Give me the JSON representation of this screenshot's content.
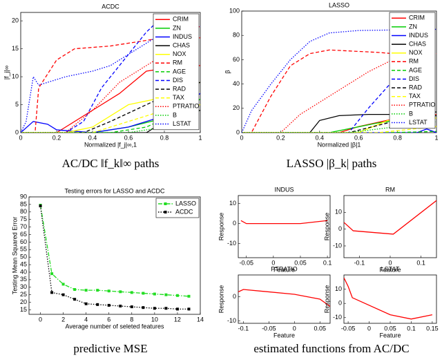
{
  "chart_data": [
    {
      "type": "line",
      "title": "ACDC",
      "xlabel": "Normalized |f_j|∞,1",
      "ylabel": "|f_j|∞",
      "xlim": [
        0,
        1
      ],
      "xticks": [
        0,
        0.2,
        0.4,
        0.6,
        0.8,
        1
      ],
      "ylim": [
        0,
        21.5
      ],
      "yticks": [
        0,
        5,
        10,
        15,
        20
      ],
      "legend": "upper right",
      "legend_box": false,
      "series": [
        {
          "name": "CRIM",
          "color": "#ff0000",
          "style": "solid",
          "x": [
            0,
            0.2,
            0.4,
            0.55,
            0.7,
            0.8,
            1
          ],
          "values": [
            0,
            0,
            4,
            7,
            11,
            11.5,
            12
          ]
        },
        {
          "name": "ZN",
          "color": "#00cc00",
          "style": "solid",
          "x": [
            0,
            0.4,
            0.6,
            0.85,
            1
          ],
          "values": [
            0,
            0,
            1,
            3,
            6
          ]
        },
        {
          "name": "INDUS",
          "color": "#0000ff",
          "style": "solid",
          "x": [
            0,
            0.07,
            0.15,
            0.2,
            0.4,
            0.6,
            0.8,
            1
          ],
          "values": [
            0,
            2,
            1.5,
            0.5,
            0,
            1,
            3,
            7
          ]
        },
        {
          "name": "CHAS",
          "color": "#000000",
          "style": "solid",
          "x": [
            0,
            0.7,
            0.8,
            1
          ],
          "values": [
            0,
            0,
            2,
            4
          ]
        },
        {
          "name": "NOX",
          "color": "#ffff00",
          "style": "solid",
          "x": [
            0,
            0.25,
            0.4,
            0.6,
            0.75,
            1
          ],
          "values": [
            0,
            0,
            1,
            5,
            6,
            9
          ]
        },
        {
          "name": "RM",
          "color": "#ff0000",
          "style": "dashed",
          "x": [
            0,
            0.08,
            0.1,
            0.2,
            0.3,
            0.5,
            0.6,
            0.8,
            1
          ],
          "values": [
            0,
            0,
            8,
            13,
            15,
            15.5,
            16,
            17,
            19
          ]
        },
        {
          "name": "AGE",
          "color": "#00cc00",
          "style": "dashed",
          "x": [
            0,
            0.5,
            0.7,
            0.9,
            1
          ],
          "values": [
            0,
            0,
            1,
            4,
            6
          ]
        },
        {
          "name": "DIS",
          "color": "#0000ff",
          "style": "dashed",
          "x": [
            0,
            0.25,
            0.35,
            0.45,
            0.55,
            0.7,
            0.8
          ],
          "values": [
            0,
            0,
            2,
            8,
            12,
            18,
            21
          ]
        },
        {
          "name": "RAD",
          "color": "#000000",
          "style": "dashed",
          "x": [
            0,
            0.35,
            0.5,
            0.7,
            0.9,
            1
          ],
          "values": [
            0,
            0,
            2,
            5,
            8,
            9
          ]
        },
        {
          "name": "TAX",
          "color": "#ffff00",
          "style": "dashed",
          "x": [
            0,
            0.4,
            0.6,
            0.8,
            1
          ],
          "values": [
            0,
            0,
            2,
            4,
            5
          ]
        },
        {
          "name": "PTRATIO",
          "color": "#ff0000",
          "style": "dotted",
          "x": [
            0,
            0.25,
            0.4,
            0.55,
            0.7,
            0.85,
            1
          ],
          "values": [
            0,
            0,
            4,
            9,
            12,
            15,
            17
          ]
        },
        {
          "name": "B",
          "color": "#00cc00",
          "style": "dotted",
          "x": [
            0,
            0.6,
            0.8,
            1
          ],
          "values": [
            0,
            0,
            1,
            4
          ]
        },
        {
          "name": "LSTAT",
          "color": "#0000ff",
          "style": "dotted",
          "x": [
            0,
            0.03,
            0.07,
            0.1,
            0.15,
            0.25,
            0.4,
            0.5,
            0.6,
            0.8,
            1
          ],
          "values": [
            0,
            2,
            10,
            8.5,
            9,
            10,
            11,
            12,
            14,
            18,
            19
          ]
        }
      ]
    },
    {
      "type": "line",
      "title": "LASSO",
      "xlabel": "Normalized |β|1",
      "ylabel": "β",
      "xlim": [
        0,
        1
      ],
      "xticks": [
        0,
        0.2,
        0.4,
        0.6,
        0.8,
        1
      ],
      "ylim": [
        0,
        100
      ],
      "yticks": [
        0,
        20,
        40,
        60,
        80,
        100
      ],
      "legend": "upper right",
      "legend_box": false,
      "series": [
        {
          "name": "CRIM",
          "color": "#ff0000",
          "style": "solid",
          "x": [
            0,
            0.5,
            0.6,
            0.8,
            1
          ],
          "values": [
            0,
            0,
            5,
            12,
            15
          ]
        },
        {
          "name": "ZN",
          "color": "#00cc00",
          "style": "solid",
          "x": [
            0,
            0.45,
            0.7,
            1
          ],
          "values": [
            0,
            0,
            8,
            14
          ]
        },
        {
          "name": "INDUS",
          "color": "#0000ff",
          "style": "solid",
          "x": [
            0,
            0.9,
            0.95,
            1
          ],
          "values": [
            0,
            0,
            3,
            0
          ]
        },
        {
          "name": "CHAS",
          "color": "#000000",
          "style": "solid",
          "x": [
            0,
            0.35,
            0.4,
            0.5,
            0.65,
            0.8,
            1
          ],
          "values": [
            0,
            0,
            10,
            14,
            15,
            15,
            17
          ]
        },
        {
          "name": "NOX",
          "color": "#ffff00",
          "style": "solid",
          "x": [
            0,
            0.6,
            0.75,
            1
          ],
          "values": [
            0,
            0,
            10,
            12
          ]
        },
        {
          "name": "RM",
          "color": "#ff0000",
          "style": "dashed",
          "x": [
            0,
            0.05,
            0.15,
            0.25,
            0.35,
            0.45,
            0.7,
            1
          ],
          "values": [
            0,
            0,
            30,
            55,
            65,
            68,
            66,
            62
          ]
        },
        {
          "name": "AGE",
          "color": "#00cc00",
          "style": "dashed",
          "x": [
            0,
            0.75,
            1
          ],
          "values": [
            0,
            0,
            1
          ]
        },
        {
          "name": "DIS",
          "color": "#0000ff",
          "style": "dashed",
          "x": [
            0,
            0.55,
            0.65,
            0.75,
            0.85,
            1
          ],
          "values": [
            0,
            0,
            20,
            38,
            55,
            60
          ]
        },
        {
          "name": "RAD",
          "color": "#000000",
          "style": "dashed",
          "x": [
            0,
            0.55,
            0.75,
            1
          ],
          "values": [
            0,
            0,
            8,
            14
          ]
        },
        {
          "name": "TAX",
          "color": "#ffff00",
          "style": "dashed",
          "x": [
            0,
            0.7,
            1
          ],
          "values": [
            0,
            0,
            5
          ]
        },
        {
          "name": "PTRATIO",
          "color": "#ff0000",
          "style": "dotted",
          "x": [
            0,
            0.2,
            0.3,
            0.45,
            0.65,
            0.8,
            1
          ],
          "values": [
            0,
            0,
            15,
            30,
            50,
            62,
            65
          ]
        },
        {
          "name": "B",
          "color": "#00cc00",
          "style": "dotted",
          "x": [
            0,
            0.55,
            0.8,
            1
          ],
          "values": [
            0,
            0,
            5,
            9
          ]
        },
        {
          "name": "LSTAT",
          "color": "#0000ff",
          "style": "dotted",
          "x": [
            0,
            0.05,
            0.15,
            0.25,
            0.35,
            0.45,
            0.6,
            1
          ],
          "values": [
            0,
            18,
            40,
            60,
            75,
            82,
            84,
            85
          ]
        }
      ]
    },
    {
      "type": "line",
      "title": "Testing errors for LASSO and ACDC",
      "xlabel": "Average number of seleted features",
      "ylabel": "Testing Mean Squared Error",
      "xlim": [
        -1,
        14
      ],
      "xticks": [
        0,
        2,
        4,
        6,
        8,
        10,
        12,
        14
      ],
      "ylim": [
        12,
        90
      ],
      "yticks": [
        15,
        20,
        25,
        30,
        35,
        40,
        45,
        50,
        55,
        60,
        65,
        70,
        75,
        80,
        85,
        90
      ],
      "legend": "upper right",
      "legend_box": true,
      "series": [
        {
          "name": "LASSO",
          "color": "#22dd22",
          "style": "dashdot",
          "marker": "square",
          "x": [
            0,
            1,
            2,
            3,
            4,
            5,
            6,
            7,
            8,
            9,
            10,
            11,
            12,
            13
          ],
          "values": [
            84.5,
            39,
            32,
            28.5,
            28,
            28,
            27.5,
            27,
            26.5,
            26,
            25.5,
            25,
            24.5,
            24
          ]
        },
        {
          "name": "ACDC",
          "color": "#000000",
          "style": "dotted",
          "marker": "square",
          "x": [
            0,
            1,
            2,
            3,
            4,
            5,
            6,
            7,
            8,
            9,
            10,
            11,
            12,
            13
          ],
          "values": [
            84,
            26.5,
            25,
            22,
            19,
            18.5,
            18,
            17.5,
            17,
            16.5,
            16,
            16,
            15.5,
            15.5
          ]
        }
      ]
    },
    {
      "type": "line",
      "title": "INDUS",
      "xlabel": "Feature",
      "ylabel": "Response",
      "xlim": [
        -0.065,
        0.105
      ],
      "xticks": [
        -0.05,
        0,
        0.05,
        0.1
      ],
      "ylim": [
        -17,
        14
      ],
      "yticks": [
        -10,
        0,
        10
      ],
      "series": [
        {
          "color": "#ff0000",
          "style": "solid",
          "x": [
            -0.06,
            -0.05,
            0,
            0.05,
            0.1
          ],
          "values": [
            1.5,
            0,
            0,
            0,
            1.5
          ]
        }
      ]
    },
    {
      "type": "line",
      "title": "RM",
      "xlabel": "Feature",
      "ylabel": "Response",
      "xlim": [
        -0.15,
        0.15
      ],
      "xticks": [
        -0.1,
        0,
        0.1
      ],
      "ylim": [
        -17,
        20
      ],
      "yticks": [
        -10,
        0,
        10
      ],
      "series": [
        {
          "color": "#ff0000",
          "style": "solid",
          "x": [
            -0.15,
            -0.12,
            0.01,
            0.15
          ],
          "values": [
            4,
            -1,
            -3,
            17
          ]
        }
      ]
    },
    {
      "type": "line",
      "title": "PTRATIO",
      "xlabel": "Feature",
      "ylabel": "Response",
      "xlim": [
        -0.11,
        0.07
      ],
      "xticks": [
        -0.1,
        -0.05,
        0,
        0.05
      ],
      "ylim": [
        -11,
        9
      ],
      "yticks": [
        -10,
        0
      ],
      "series": [
        {
          "color": "#ff0000",
          "style": "solid",
          "x": [
            -0.11,
            -0.1,
            0,
            0.05,
            0.07
          ],
          "values": [
            2,
            3,
            1,
            -1,
            -4
          ]
        }
      ]
    },
    {
      "type": "line",
      "title": "LSTAT",
      "xlabel": "Feature",
      "ylabel": "Response",
      "xlim": [
        -0.06,
        0.16
      ],
      "xticks": [
        -0.05,
        0,
        0.05,
        0.1,
        0.15
      ],
      "ylim": [
        -14,
        20
      ],
      "yticks": [
        -10,
        0,
        10
      ],
      "series": [
        {
          "color": "#ff0000",
          "style": "solid",
          "x": [
            -0.06,
            -0.05,
            -0.04,
            0.05,
            0.1,
            0.15
          ],
          "values": [
            18,
            12,
            4,
            -8,
            -11,
            -8
          ]
        }
      ]
    }
  ],
  "figure_captions": [
    "AC/DC ‖f_k‖∞ paths",
    "LASSO |β_k| paths",
    "predictive MSE",
    "estimated functions from AC/DC"
  ]
}
